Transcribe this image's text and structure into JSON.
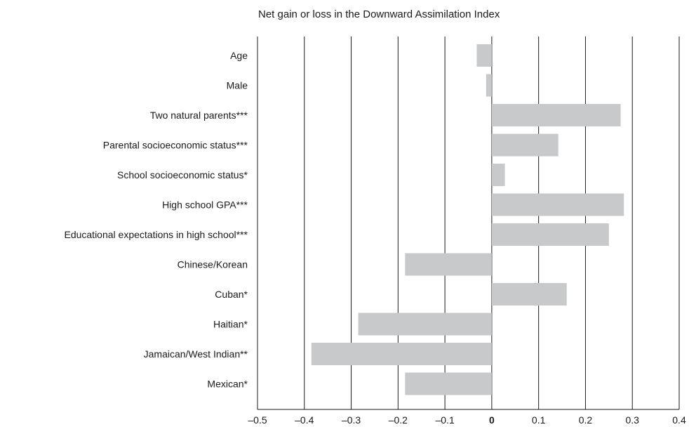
{
  "chart_data": {
    "type": "bar",
    "orientation": "horizontal",
    "title": "Net gain or loss in the Downward Assimilation Index",
    "xlabel": "",
    "ylabel": "",
    "xlim": [
      -0.5,
      0.4
    ],
    "x_ticks": [
      -0.5,
      -0.4,
      -0.3,
      -0.2,
      -0.1,
      0,
      0.1,
      0.2,
      0.3,
      0.4
    ],
    "x_tick_labels": [
      "–0.5",
      "–0.4",
      "–0.3",
      "–0.2",
      "–0.1",
      "0",
      "0.1",
      "0.2",
      "0.3",
      "0.4"
    ],
    "grid": "vertical",
    "bar_color": "#c8c9cb",
    "categories": [
      "Age",
      "Male",
      "Two natural parents***",
      "Parental socioeconomic status***",
      "School socioeconomic status*",
      "High school GPA***",
      "Educational expectations in high school***",
      "Chinese/Korean",
      "Cuban*",
      "Haitian*",
      "Jamaican/West Indian**",
      "Mexican*"
    ],
    "values": [
      -0.032,
      -0.012,
      0.275,
      0.142,
      0.028,
      0.282,
      0.25,
      -0.185,
      0.16,
      -0.285,
      -0.385,
      -0.185
    ]
  }
}
